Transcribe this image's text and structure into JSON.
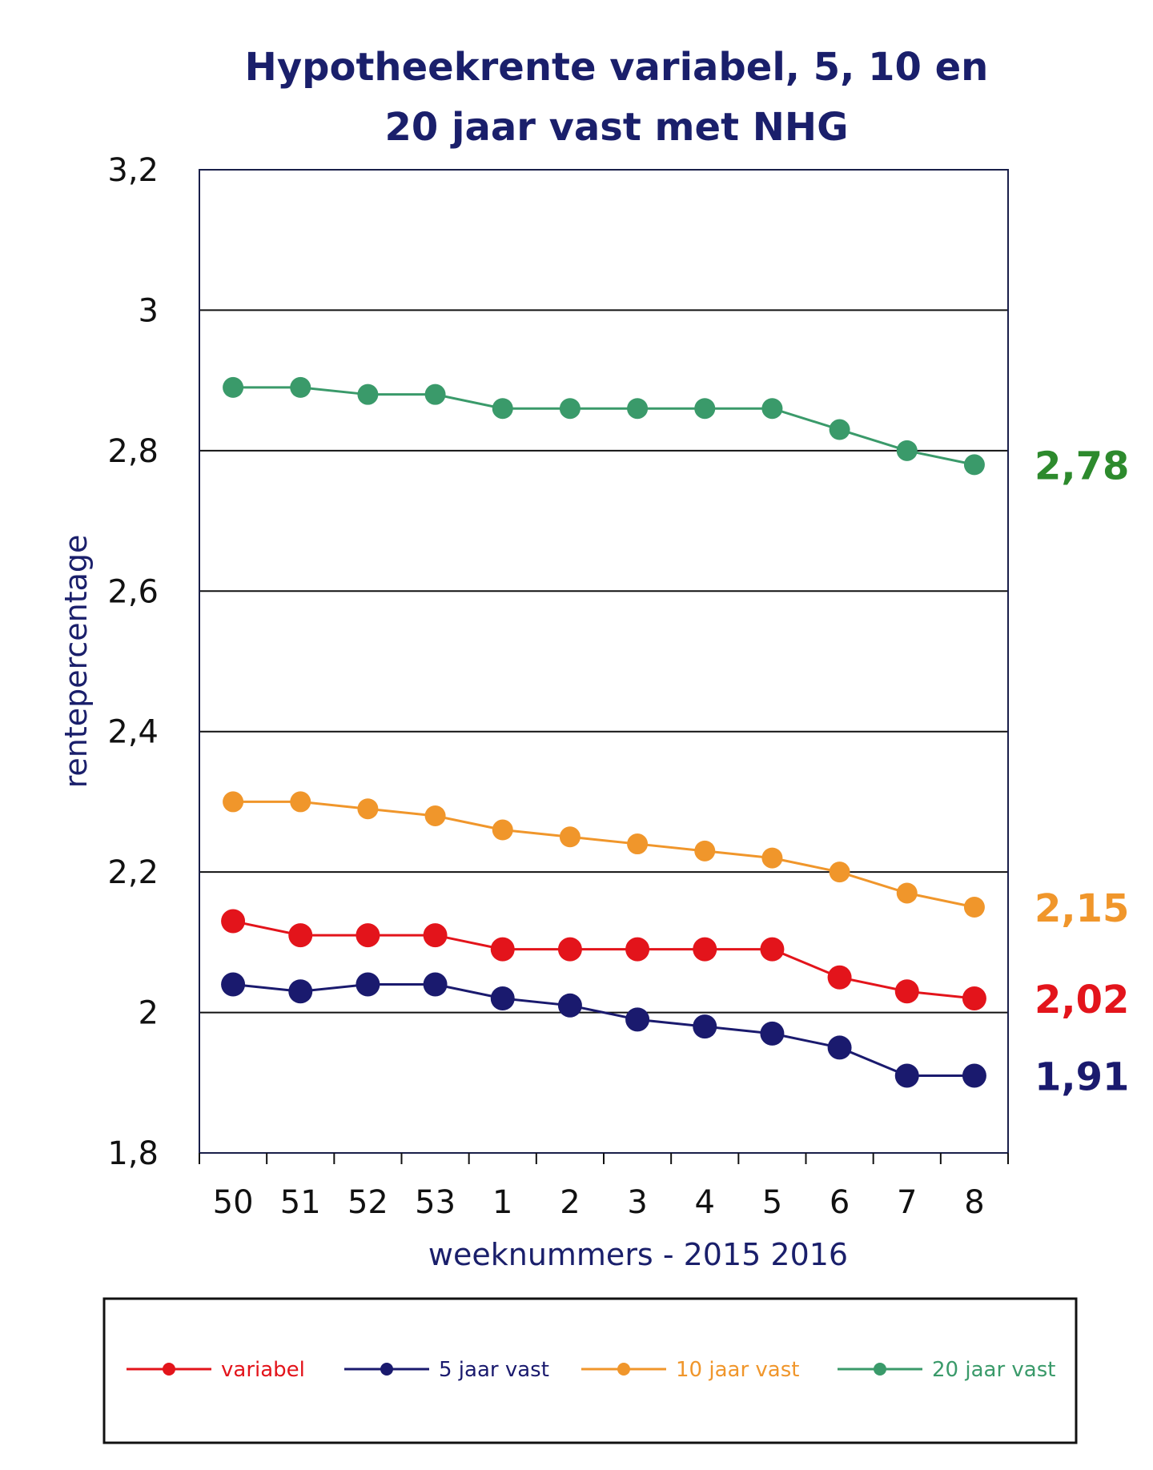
{
  "chart_data": {
    "type": "line",
    "title_lines": [
      "Hypotheekrente variabel, 5, 10 en",
      "20 jaar vast met NHG"
    ],
    "xlabel": "weeknummers - 2015 2016",
    "ylabel": "rentepercentage",
    "categories": [
      "50",
      "51",
      "52",
      "53",
      "1",
      "2",
      "3",
      "4",
      "5",
      "6",
      "7",
      "8"
    ],
    "y_ticks": [
      "1,8",
      "2",
      "2,2",
      "2,4",
      "2,6",
      "2,8",
      "3",
      "3,2"
    ],
    "ylim": [
      1.8,
      3.2
    ],
    "grid": true,
    "legend_position": "bottom",
    "series": [
      {
        "name": "variabel",
        "color": "#e3141b",
        "values": [
          2.13,
          2.11,
          2.11,
          2.11,
          2.09,
          2.09,
          2.09,
          2.09,
          2.09,
          2.05,
          2.03,
          2.02
        ],
        "end_label": "2,02"
      },
      {
        "name": "5 jaar vast",
        "color": "#1a1a6e",
        "values": [
          2.04,
          2.03,
          2.04,
          2.04,
          2.02,
          2.01,
          1.99,
          1.98,
          1.97,
          1.95,
          1.91,
          1.91
        ],
        "end_label": "1,91"
      },
      {
        "name": "10 jaar vast",
        "color": "#f0962b",
        "values": [
          2.3,
          2.3,
          2.29,
          2.28,
          2.26,
          2.25,
          2.24,
          2.23,
          2.22,
          2.2,
          2.17,
          2.15
        ],
        "end_label": "2,15"
      },
      {
        "name": "20 jaar vast",
        "color": "#3a9a6a",
        "values": [
          2.89,
          2.89,
          2.88,
          2.88,
          2.86,
          2.86,
          2.86,
          2.86,
          2.86,
          2.83,
          2.8,
          2.78
        ],
        "end_label": "2,78"
      }
    ],
    "end_label_colors": [
      "#e3141b",
      "#1a1a6e",
      "#f0962b",
      "#2d8a2d"
    ]
  }
}
